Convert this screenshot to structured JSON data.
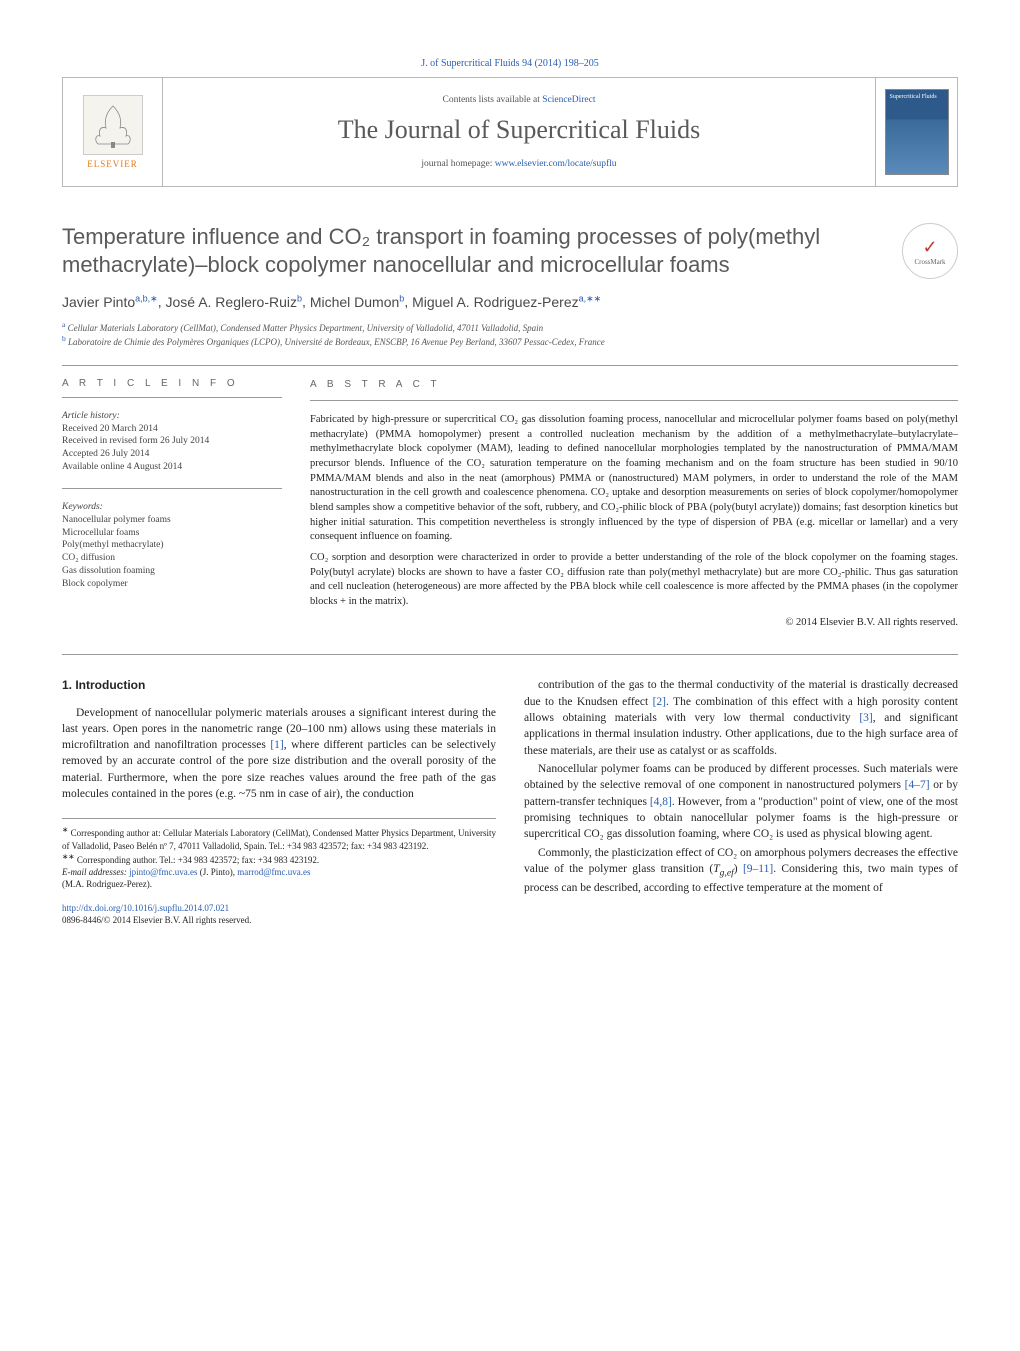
{
  "top_citation": "J. of Supercritical Fluids 94 (2014) 198–205",
  "header": {
    "contents_label": "Contents lists available at ",
    "contents_link": "ScienceDirect",
    "journal_name": "The Journal of Supercritical Fluids",
    "homepage_label": "journal homepage: ",
    "homepage_link": "www.elsevier.com/locate/supflu",
    "publisher": "ELSEVIER",
    "cover_text": "Supercritical Fluids"
  },
  "crossmark": "CrossMark",
  "title": "Temperature influence and CO₂ transport in foaming processes of poly(methyl methacrylate)–block copolymer nanocellular and microcellular foams",
  "authors_html": "Javier Pinto",
  "authors": [
    {
      "name": "Javier Pinto",
      "sup": "a,b,∗"
    },
    {
      "name": "José A. Reglero-Ruiz",
      "sup": "b"
    },
    {
      "name": "Michel Dumon",
      "sup": "b"
    },
    {
      "name": "Miguel A. Rodriguez-Perez",
      "sup": "a,∗∗"
    }
  ],
  "affiliations": [
    {
      "sup": "a",
      "text": "Cellular Materials Laboratory (CellMat), Condensed Matter Physics Department, University of Valladolid, 47011 Valladolid, Spain"
    },
    {
      "sup": "b",
      "text": "Laboratoire de Chimie des Polymères Organiques (LCPO), Université de Bordeaux, ENSCBP, 16 Avenue Pey Berland, 33607 Pessac-Cedex, France"
    }
  ],
  "article_info": {
    "heading": "a r t i c l e   i n f o",
    "history_label": "Article history:",
    "history": [
      "Received 20 March 2014",
      "Received in revised form 26 July 2014",
      "Accepted 26 July 2014",
      "Available online 4 August 2014"
    ],
    "keywords_label": "Keywords:",
    "keywords": [
      "Nanocellular polymer foams",
      "Microcellular foams",
      "Poly(methyl methacrylate)",
      "CO₂ diffusion",
      "Gas dissolution foaming",
      "Block copolymer"
    ]
  },
  "abstract": {
    "heading": "a b s t r a c t",
    "p1": "Fabricated by high-pressure or supercritical CO₂ gas dissolution foaming process, nanocellular and microcellular polymer foams based on poly(methyl methacrylate) (PMMA homopolymer) present a controlled nucleation mechanism by the addition of a methylmethacrylate–butylacrylate–methylmethacrylate block copolymer (MAM), leading to defined nanocellular morphologies templated by the nanostructuration of PMMA/MAM precursor blends. Influence of the CO₂ saturation temperature on the foaming mechanism and on the foam structure has been studied in 90/10 PMMA/MAM blends and also in the neat (amorphous) PMMA or (nanostructured) MAM polymers, in order to understand the role of the MAM nanostructuration in the cell growth and coalescence phenomena. CO₂ uptake and desorption measurements on series of block copolymer/homopolymer blend samples show a competitive behavior of the soft, rubbery, and CO₂-philic block of PBA (poly(butyl acrylate)) domains; fast desorption kinetics but higher initial saturation. This competition nevertheless is strongly influenced by the type of dispersion of PBA (e.g. micellar or lamellar) and a very consequent influence on foaming.",
    "p2": "CO₂ sorption and desorption were characterized in order to provide a better understanding of the role of the block copolymer on the foaming stages. Poly(butyl acrylate) blocks are shown to have a faster CO₂ diffusion rate than poly(methyl methacrylate) but are more CO₂-philic. Thus gas saturation and cell nucleation (heterogeneous) are more affected by the PBA block while cell coalescence is more affected by the PMMA phases (in the copolymer blocks + in the matrix).",
    "copyright": "© 2014 Elsevier B.V. All rights reserved."
  },
  "intro": {
    "heading": "1. Introduction",
    "left_p1": "Development of nanocellular polymeric materials arouses a significant interest during the last years. Open pores in the nanometric range (20–100 nm) allows using these materials in microfiltration and nanofiltration processes [1], where different particles can be selectively removed by an accurate control of the pore size distribution and the overall porosity of the material. Furthermore, when the pore size reaches values around the free path of the gas molecules contained in the pores (e.g. ~75 nm in case of air), the conduction",
    "right_p1": "contribution of the gas to the thermal conductivity of the material is drastically decreased due to the Knudsen effect [2]. The combination of this effect with a high porosity content allows obtaining materials with very low thermal conductivity [3], and significant applications in thermal insulation industry. Other applications, due to the high surface area of these materials, are their use as catalyst or as scaffolds.",
    "right_p2": "Nanocellular polymer foams can be produced by different processes. Such materials were obtained by the selective removal of one component in nanostructured polymers [4–7] or by pattern-transfer techniques [4,8]. However, from a \"production\" point of view, one of the most promising techniques to obtain nanocellular polymer foams is the high-pressure or supercritical CO₂ gas dissolution foaming, where CO₂ is used as physical blowing agent.",
    "right_p3": "Commonly, the plasticization effect of CO₂ on amorphous polymers decreases the effective value of the polymer glass transition (Tg,ef) [9–11]. Considering this, two main types of process can be described, according to effective temperature at the moment of"
  },
  "footnotes": {
    "f1_label": "∗",
    "f1": "Corresponding author at: Cellular Materials Laboratory (CellMat), Condensed Matter Physics Department, University of Valladolid, Paseo Belén nº 7, 47011 Valladolid, Spain. Tel.: +34 983 423572; fax: +34 983 423192.",
    "f2_label": "∗∗",
    "f2": "Corresponding author. Tel.: +34 983 423572; fax: +34 983 423192.",
    "emails_label": "E-mail addresses: ",
    "email1": "jpinto@fmc.uva.es",
    "email1_who": " (J. Pinto), ",
    "email2": "marrod@fmc.uva.es",
    "email2_who": "(M.A. Rodriguez-Perez)."
  },
  "doi": {
    "link": "http://dx.doi.org/10.1016/j.supflu.2014.07.021",
    "issn": "0896-8446/© 2014 Elsevier B.V. All rights reserved."
  },
  "colors": {
    "link": "#2a5db0",
    "text": "#252525",
    "heading_gray": "#5a5a5a",
    "rule": "#999999",
    "publisher_orange": "#e67817"
  }
}
